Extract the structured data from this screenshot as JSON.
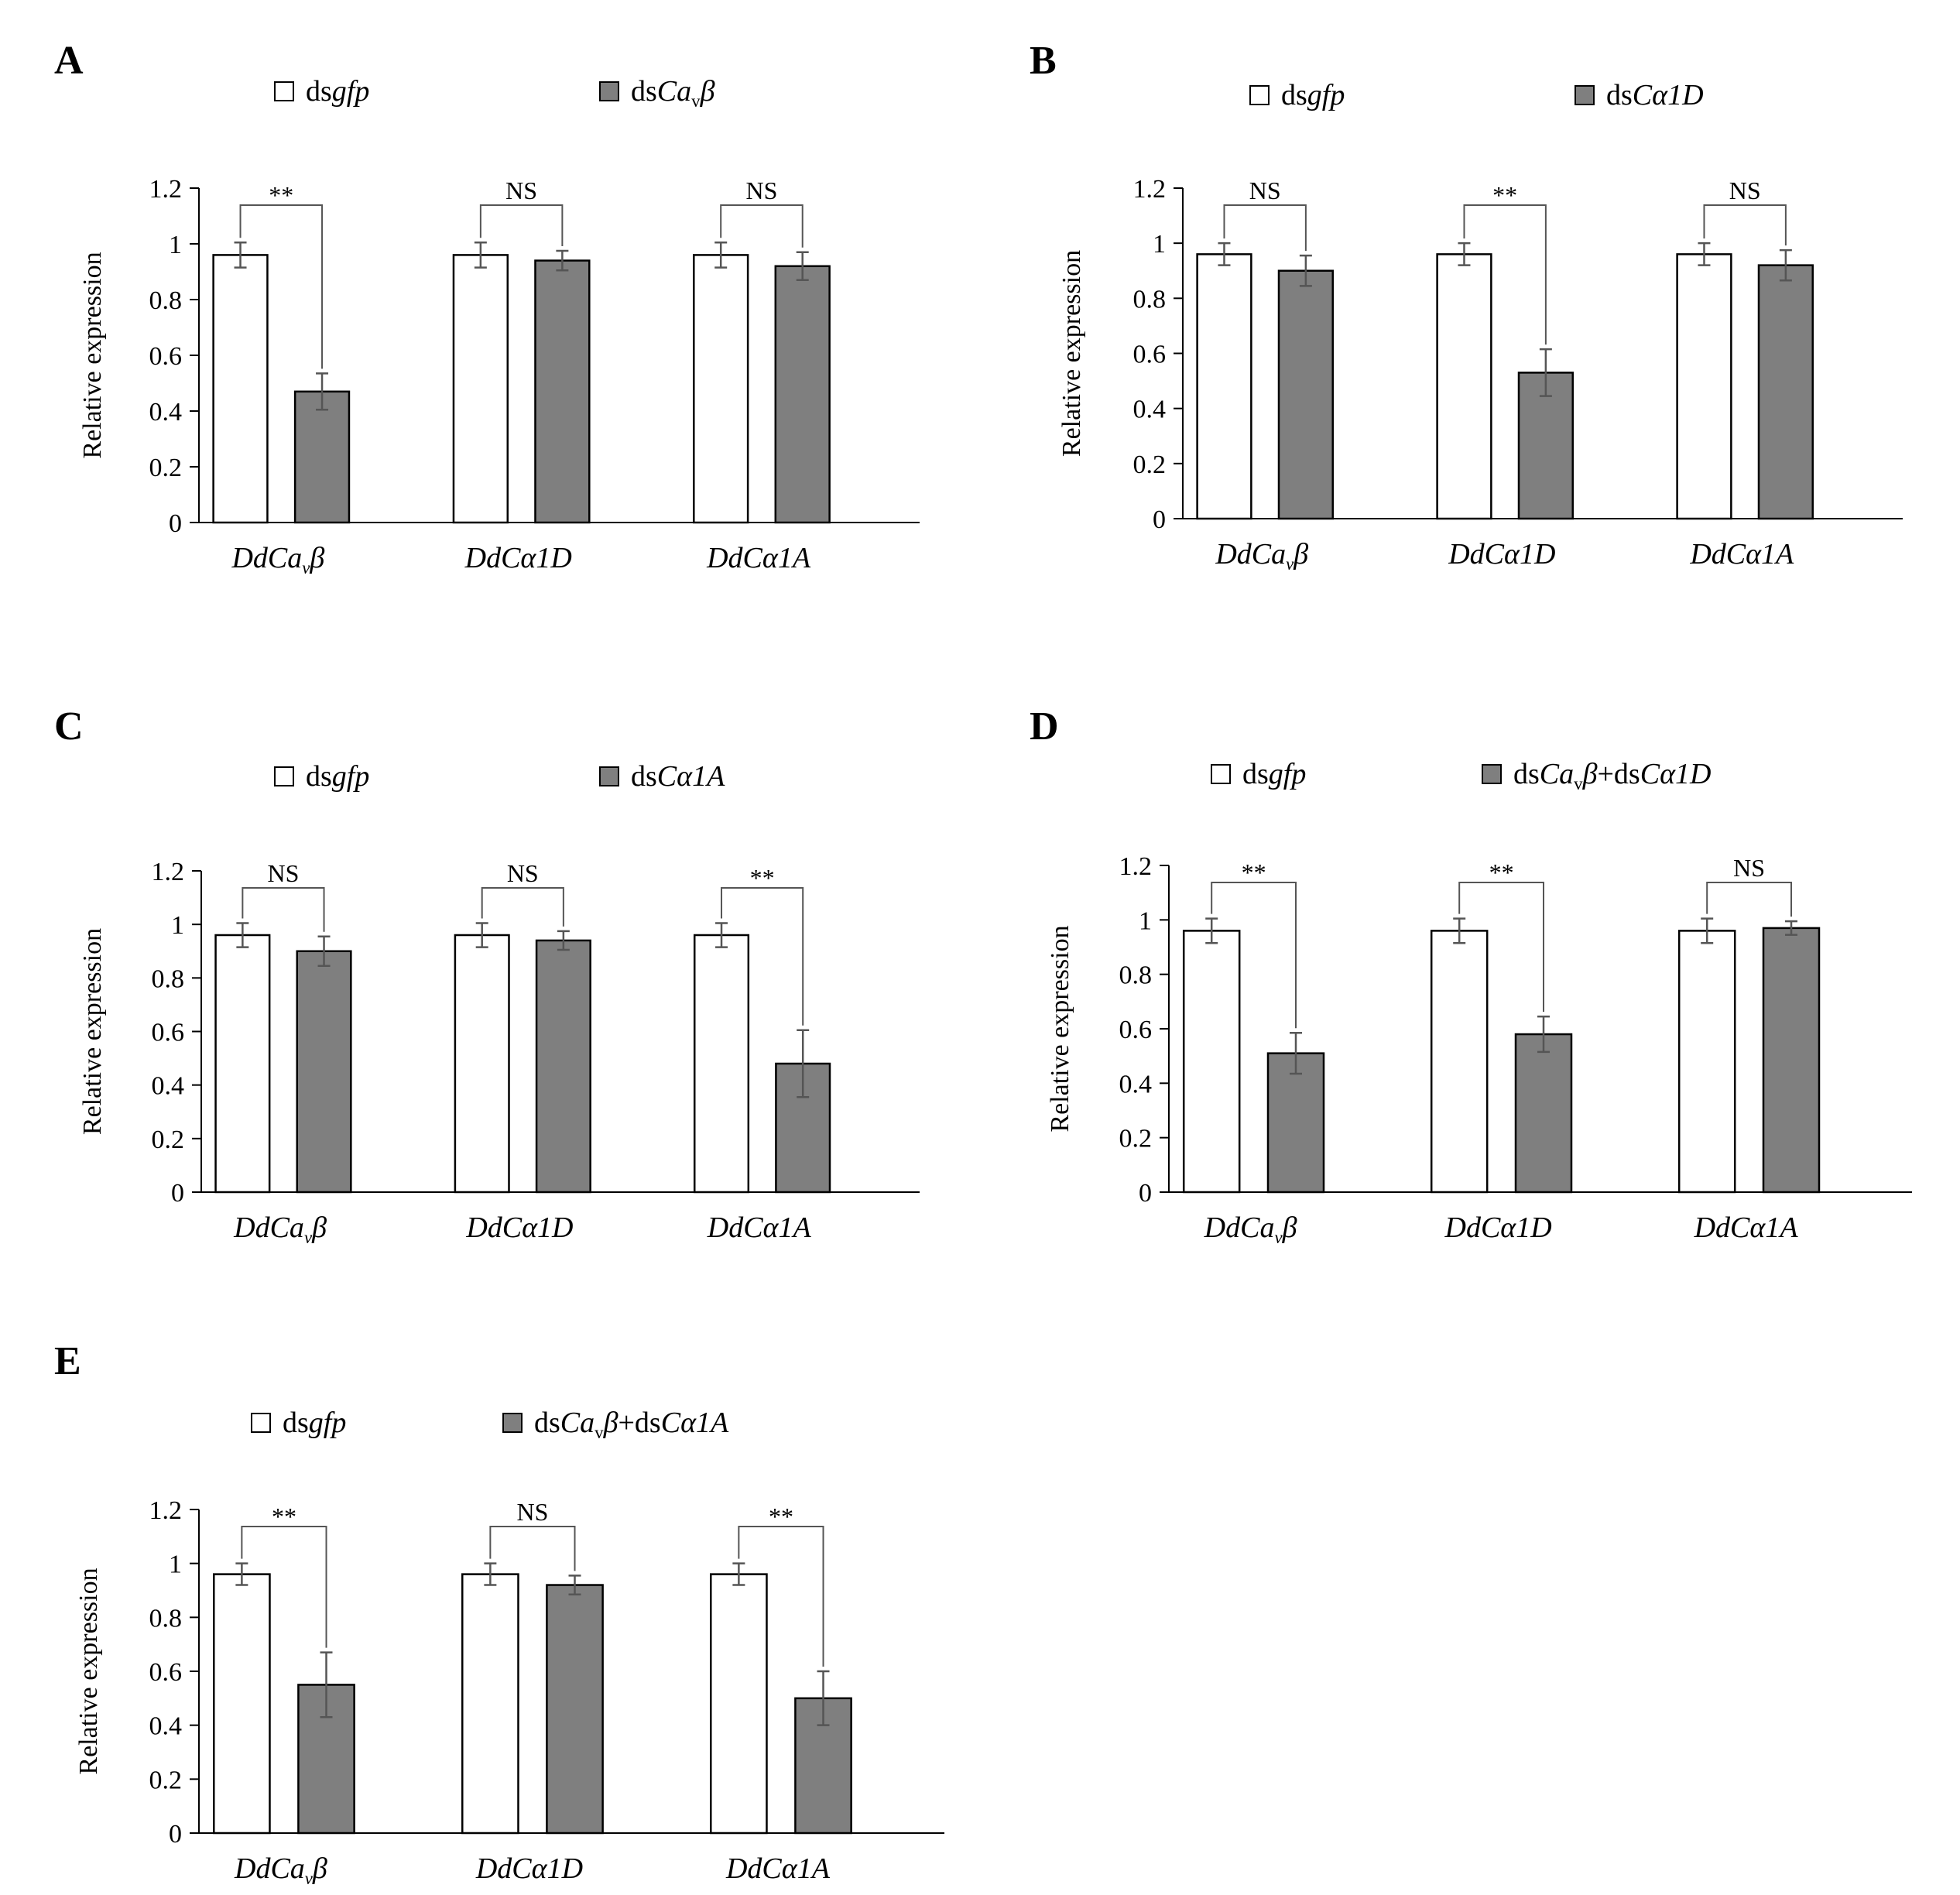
{
  "figure": {
    "bar_colors": {
      "control_fill": "#ffffff",
      "treatment_fill": "#7f7f7f",
      "outline": "#000000",
      "bracket": "#555555"
    }
  },
  "chart_data": [
    {
      "panel": "A",
      "type": "bar",
      "legend": [
        {
          "name": "dsgfp",
          "parts": [
            {
              "t": "ds"
            },
            {
              "t": "gfp",
              "i": true
            }
          ]
        },
        {
          "name": "dsCavβ",
          "parts": [
            {
              "t": "ds"
            },
            {
              "t": "Ca",
              "i": true
            },
            {
              "t": "v",
              "sub": true
            },
            {
              "t": "β",
              "i": true
            }
          ]
        }
      ],
      "ylabel": "Relative expression",
      "ylim": [
        0,
        1.2
      ],
      "yticks": [
        "0",
        "0.2",
        "0.4",
        "0.6",
        "0.8",
        "1",
        "1.2"
      ],
      "categories": [
        "DdCavβ",
        "DdCα1D",
        "DdCα1A"
      ],
      "series": [
        {
          "name": "dsgfp",
          "values": [
            0.96,
            0.96,
            0.96
          ],
          "errors": [
            0.045,
            0.045,
            0.045
          ]
        },
        {
          "name": "dsCavβ",
          "values": [
            0.47,
            0.94,
            0.92
          ],
          "errors": [
            0.065,
            0.035,
            0.05
          ]
        }
      ],
      "significance": [
        "**",
        "NS",
        "NS"
      ]
    },
    {
      "panel": "B",
      "type": "bar",
      "legend": [
        {
          "name": "dsgfp",
          "parts": [
            {
              "t": "ds"
            },
            {
              "t": "gfp",
              "i": true
            }
          ]
        },
        {
          "name": "dsCα1D",
          "parts": [
            {
              "t": "ds"
            },
            {
              "t": "Cα1D",
              "i": true
            }
          ]
        }
      ],
      "ylabel": "Relative expression",
      "ylim": [
        0,
        1.2
      ],
      "yticks": [
        "0",
        "0.2",
        "0.4",
        "0.6",
        "0.8",
        "1",
        "1.2"
      ],
      "categories": [
        "DdCavβ",
        "DdCα1D",
        "DdCα1A"
      ],
      "series": [
        {
          "name": "dsgfp",
          "values": [
            0.96,
            0.96,
            0.96
          ],
          "errors": [
            0.04,
            0.04,
            0.04
          ]
        },
        {
          "name": "dsCα1D",
          "values": [
            0.9,
            0.53,
            0.92
          ],
          "errors": [
            0.055,
            0.085,
            0.055
          ]
        }
      ],
      "significance": [
        "NS",
        "**",
        "NS"
      ]
    },
    {
      "panel": "C",
      "type": "bar",
      "legend": [
        {
          "name": "dsgfp",
          "parts": [
            {
              "t": "ds"
            },
            {
              "t": "gfp",
              "i": true
            }
          ]
        },
        {
          "name": "dsCα1A",
          "parts": [
            {
              "t": "ds"
            },
            {
              "t": "Cα1A",
              "i": true
            }
          ]
        }
      ],
      "ylabel": "Relative expression",
      "ylim": [
        0,
        1.2
      ],
      "yticks": [
        "0",
        "0.2",
        "0.4",
        "0.6",
        "0.8",
        "1",
        "1.2"
      ],
      "categories": [
        "DdCavβ",
        "DdCα1D",
        "DdCα1A"
      ],
      "series": [
        {
          "name": "dsgfp",
          "values": [
            0.96,
            0.96,
            0.96
          ],
          "errors": [
            0.045,
            0.045,
            0.045
          ]
        },
        {
          "name": "dsCα1A",
          "values": [
            0.9,
            0.94,
            0.48
          ],
          "errors": [
            0.055,
            0.035,
            0.125
          ]
        }
      ],
      "significance": [
        "NS",
        "NS",
        "**"
      ]
    },
    {
      "panel": "D",
      "type": "bar",
      "legend": [
        {
          "name": "dsgfp",
          "parts": [
            {
              "t": "ds"
            },
            {
              "t": "gfp",
              "i": true
            }
          ]
        },
        {
          "name": "dsCavβ+dsCα1D",
          "parts": [
            {
              "t": "ds"
            },
            {
              "t": "Ca",
              "i": true
            },
            {
              "t": "v",
              "sub": true
            },
            {
              "t": "β",
              "i": true
            },
            {
              "t": "+ds"
            },
            {
              "t": "Cα1D",
              "i": true
            }
          ]
        }
      ],
      "ylabel": "Relative expression",
      "ylim": [
        0,
        1.2
      ],
      "yticks": [
        "0",
        "0.2",
        "0.4",
        "0.6",
        "0.8",
        "1",
        "1.2"
      ],
      "categories": [
        "DdCavβ",
        "DdCα1D",
        "DdCα1A"
      ],
      "series": [
        {
          "name": "dsgfp",
          "values": [
            0.96,
            0.96,
            0.96
          ],
          "errors": [
            0.045,
            0.045,
            0.045
          ]
        },
        {
          "name": "dsCavβ+dsCα1D",
          "values": [
            0.51,
            0.58,
            0.97
          ],
          "errors": [
            0.075,
            0.065,
            0.025
          ]
        }
      ],
      "significance": [
        "**",
        "**",
        "NS"
      ]
    },
    {
      "panel": "E",
      "type": "bar",
      "legend": [
        {
          "name": "dsgfp",
          "parts": [
            {
              "t": "ds"
            },
            {
              "t": "gfp",
              "i": true
            }
          ]
        },
        {
          "name": "dsCavβ+dsCα1A",
          "parts": [
            {
              "t": "ds"
            },
            {
              "t": "Ca",
              "i": true
            },
            {
              "t": "v",
              "sub": true
            },
            {
              "t": "β",
              "i": true
            },
            {
              "t": "+ds"
            },
            {
              "t": "Cα1A",
              "i": true
            }
          ]
        }
      ],
      "ylabel": "Relative expression",
      "ylim": [
        0,
        1.2
      ],
      "yticks": [
        "0",
        "0.2",
        "0.4",
        "0.6",
        "0.8",
        "1",
        "1.2"
      ],
      "categories": [
        "DdCavβ",
        "DdCα1D",
        "DdCα1A"
      ],
      "series": [
        {
          "name": "dsgfp",
          "values": [
            0.96,
            0.96,
            0.96
          ],
          "errors": [
            0.04,
            0.04,
            0.04
          ]
        },
        {
          "name": "dsCavβ+dsCα1A",
          "values": [
            0.55,
            0.92,
            0.5
          ],
          "errors": [
            0.12,
            0.035,
            0.1
          ]
        }
      ],
      "significance": [
        "**",
        "NS",
        "**"
      ]
    }
  ]
}
